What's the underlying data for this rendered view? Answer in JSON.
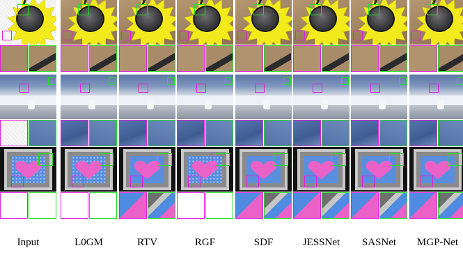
{
  "columns": [
    {
      "label": "Input"
    },
    {
      "label": "L0GM"
    },
    {
      "label": "RTV"
    },
    {
      "label": "RGF"
    },
    {
      "label": "SDF"
    },
    {
      "label": "JESSNet"
    },
    {
      "label": "SASNet"
    },
    {
      "label": "MGP-Net"
    }
  ],
  "colors": {
    "zoom_box_primary": "#e020e0",
    "zoom_box_secondary": "#20e020"
  }
}
